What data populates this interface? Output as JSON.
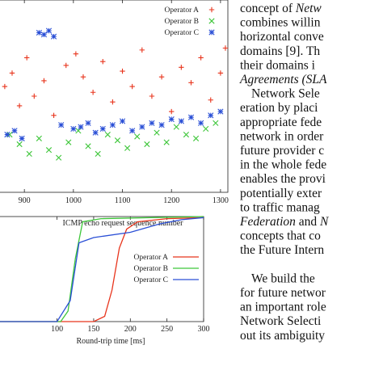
{
  "chart_data": [
    {
      "type": "scatter",
      "x_label": "ICMP echo request sequence number",
      "xlim": [
        847,
        1315
      ],
      "xticks": [
        900,
        1000,
        1100,
        1200,
        1300
      ],
      "ylim": [
        0,
        1
      ],
      "legend": "top-right",
      "series": [
        {
          "name": "Operator A",
          "color": "#e8341c",
          "marker": "+",
          "x": [
            860,
            875,
            890,
            905,
            920,
            940,
            960,
            985,
            1005,
            1020,
            1040,
            1060,
            1080,
            1100,
            1120,
            1140,
            1160,
            1180,
            1200,
            1220,
            1240,
            1260,
            1280,
            1300,
            1310
          ],
          "values": [
            0.55,
            0.62,
            0.45,
            0.7,
            0.5,
            0.58,
            0.4,
            0.66,
            0.72,
            0.6,
            0.52,
            0.68,
            0.47,
            0.63,
            0.55,
            0.74,
            0.5,
            0.6,
            0.42,
            0.65,
            0.57,
            0.7,
            0.48,
            0.62,
            0.75
          ]
        },
        {
          "name": "Operator B",
          "color": "#3ec63a",
          "marker": "x",
          "x": [
            870,
            890,
            910,
            930,
            950,
            970,
            990,
            1010,
            1030,
            1050,
            1070,
            1090,
            1110,
            1130,
            1150,
            1170,
            1190,
            1210,
            1230,
            1250,
            1270,
            1290
          ],
          "values": [
            0.3,
            0.25,
            0.2,
            0.28,
            0.22,
            0.18,
            0.26,
            0.32,
            0.24,
            0.2,
            0.3,
            0.27,
            0.23,
            0.29,
            0.25,
            0.31,
            0.26,
            0.34,
            0.3,
            0.28,
            0.33,
            0.36
          ]
        },
        {
          "name": "Operator C",
          "color": "#2a4fd6",
          "marker": "*",
          "x": [
            865,
            880,
            895,
            930,
            940,
            950,
            960,
            975,
            1000,
            1015,
            1030,
            1045,
            1060,
            1080,
            1100,
            1120,
            1140,
            1160,
            1180,
            1200,
            1220,
            1240,
            1260,
            1280,
            1300
          ],
          "values": [
            0.3,
            0.32,
            0.28,
            0.83,
            0.82,
            0.84,
            0.81,
            0.35,
            0.33,
            0.34,
            0.36,
            0.31,
            0.33,
            0.35,
            0.37,
            0.32,
            0.34,
            0.36,
            0.35,
            0.38,
            0.37,
            0.39,
            0.36,
            0.4,
            0.42
          ]
        }
      ]
    },
    {
      "type": "line",
      "x_label": "Round-trip time [ms]",
      "xlim": [
        20,
        300
      ],
      "xticks": [
        100,
        150,
        200,
        250,
        300
      ],
      "ylim": [
        0,
        1
      ],
      "legend": "center-right",
      "series": [
        {
          "name": "Operator A",
          "color": "#e8341c",
          "x": [
            20,
            150,
            165,
            175,
            185,
            195,
            210,
            250,
            300
          ],
          "values": [
            0,
            0,
            0.05,
            0.3,
            0.7,
            0.88,
            0.95,
            0.98,
            0.99
          ]
        },
        {
          "name": "Operator B",
          "color": "#3ec63a",
          "x": [
            20,
            105,
            115,
            125,
            135,
            160,
            300
          ],
          "values": [
            0,
            0,
            0.1,
            0.6,
            0.95,
            0.98,
            1
          ]
        },
        {
          "name": "Operator C",
          "color": "#2a4fd6",
          "x": [
            20,
            100,
            118,
            130,
            150,
            200,
            240,
            270,
            300
          ],
          "values": [
            0,
            0,
            0.2,
            0.75,
            0.8,
            0.85,
            0.93,
            0.97,
            0.99
          ]
        }
      ]
    }
  ],
  "text": {
    "lines": [
      [
        {
          "t": "concept of "
        },
        {
          "t": "Netw",
          "italic": true
        }
      ],
      [
        {
          "t": "combines willin"
        }
      ],
      [
        {
          "t": "horizontal conve"
        }
      ],
      [
        {
          "t": "domains [9]. Th"
        }
      ],
      [
        {
          "t": "their domains i"
        }
      ],
      [
        {
          "t": "Agreements (SLA",
          "italic": true
        }
      ],
      [
        {
          "t": "Network Sele",
          "indent": true
        }
      ],
      [
        {
          "t": "eration by placi"
        }
      ],
      [
        {
          "t": "appropriate fede"
        }
      ],
      [
        {
          "t": "network in order"
        }
      ],
      [
        {
          "t": "future provider c"
        }
      ],
      [
        {
          "t": "in the whole fede"
        }
      ],
      [
        {
          "t": "enables the provi"
        }
      ],
      [
        {
          "t": "potentially exter"
        }
      ],
      [
        {
          "t": "to traffic manag"
        }
      ],
      [
        {
          "t": "Federation",
          "italic": true
        },
        {
          "t": " and "
        },
        {
          "t": "N",
          "italic": true
        }
      ],
      [
        {
          "t": "concepts that co"
        }
      ],
      [
        {
          "t": "the Future Intern"
        }
      ],
      [],
      [
        {
          "t": "We build the",
          "indent": true
        }
      ],
      [
        {
          "t": "for future networ"
        }
      ],
      [
        {
          "t": "an important role"
        }
      ],
      [
        {
          "t": "Network Selecti"
        }
      ],
      [
        {
          "t": "out its ambiguity"
        }
      ]
    ]
  }
}
